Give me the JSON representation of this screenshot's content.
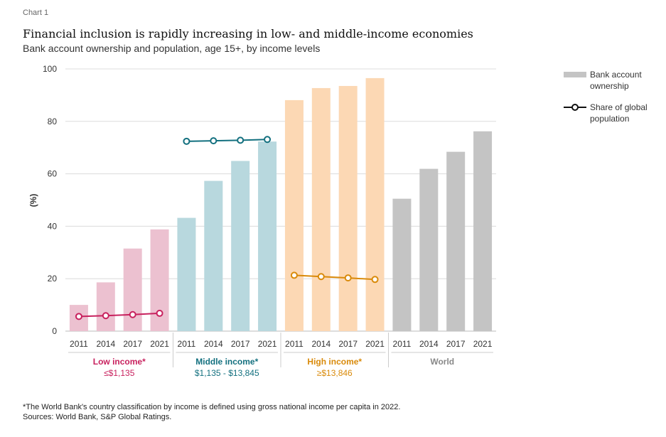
{
  "header": {
    "chart_label": "Chart 1",
    "title": "Financial inclusion is rapidly increasing in low- and middle-income economies",
    "subtitle": "Bank account ownership and population, age 15+, by income levels"
  },
  "footer": {
    "note": "*The World Bank's country classification by income is defined using gross national income per capita in 2022.",
    "sources": "Sources: World Bank, S&P Global Ratings."
  },
  "colors": {
    "low_bar": "#ecc1d0",
    "low_line": "#c8215e",
    "middle_bar": "#b8d8de",
    "middle_line": "#13707f",
    "high_bar": "#fcd8b4",
    "high_line": "#d98a0a",
    "world_bar": "#c4c4c4",
    "grid": "#dcdcdc",
    "axis_text": "#333333"
  },
  "chart_data": {
    "type": "bar",
    "ylabel": "(%)",
    "ylim": [
      0,
      100
    ],
    "yticks": [
      0,
      20,
      40,
      60,
      80,
      100
    ],
    "grid": true,
    "legend_position": "right",
    "legend": [
      {
        "label": "Bank account ownership",
        "kind": "bar"
      },
      {
        "label": "Share of global population",
        "kind": "line"
      }
    ],
    "groups": [
      {
        "name": "Low income*",
        "range": "≤$1,135",
        "color_key": "low",
        "years": [
          "2011",
          "2014",
          "2017",
          "2021"
        ],
        "bank_account_ownership": [
          10,
          18.6,
          31.5,
          38.8
        ],
        "share_of_global_population": [
          5.6,
          5.9,
          6.3,
          6.8
        ]
      },
      {
        "name": "Middle income*",
        "range": "$1,135 - $13,845",
        "color_key": "middle",
        "years": [
          "2011",
          "2014",
          "2017",
          "2021"
        ],
        "bank_account_ownership": [
          43.2,
          57.3,
          64.9,
          72.3
        ],
        "share_of_global_population": [
          72.4,
          72.6,
          72.8,
          73.1
        ]
      },
      {
        "name": "High income*",
        "range": "≥$13,846",
        "color_key": "high",
        "years": [
          "2011",
          "2014",
          "2017",
          "2021"
        ],
        "bank_account_ownership": [
          88.1,
          92.7,
          93.5,
          96.5
        ],
        "share_of_global_population": [
          21.3,
          20.8,
          20.3,
          19.7
        ]
      },
      {
        "name": "World",
        "range": "",
        "color_key": "world",
        "years": [
          "2011",
          "2014",
          "2017",
          "2021"
        ],
        "bank_account_ownership": [
          50.5,
          61.9,
          68.4,
          76.2
        ],
        "share_of_global_population": null
      }
    ]
  }
}
